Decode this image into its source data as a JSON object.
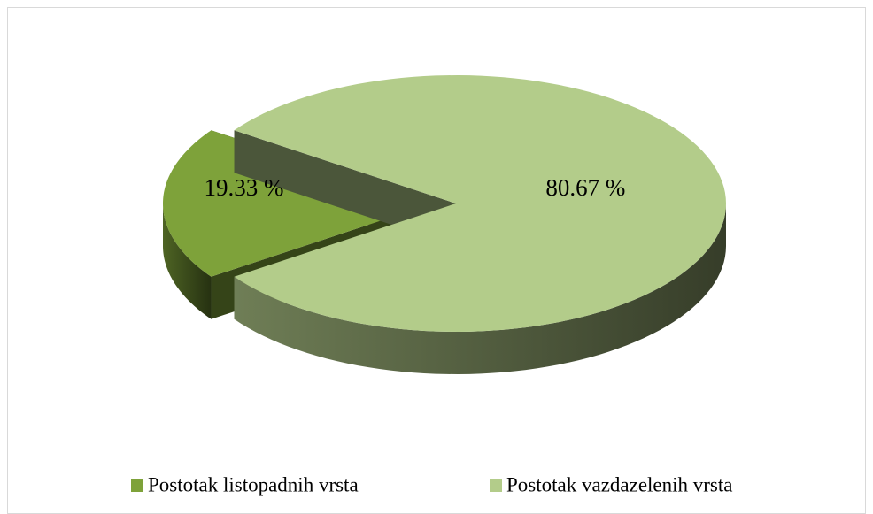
{
  "chart_data": {
    "type": "pie",
    "categories": [
      "Postotak listopadnih vrsta",
      "Postotak vazdazelenih vrsta"
    ],
    "values": [
      19.33,
      80.67
    ],
    "value_labels": [
      "19.33 %",
      "80.67 %"
    ],
    "colors": [
      "#7ea23a",
      "#b3cc8a"
    ],
    "exploded": [
      true,
      false
    ],
    "legend": "bottom"
  }
}
